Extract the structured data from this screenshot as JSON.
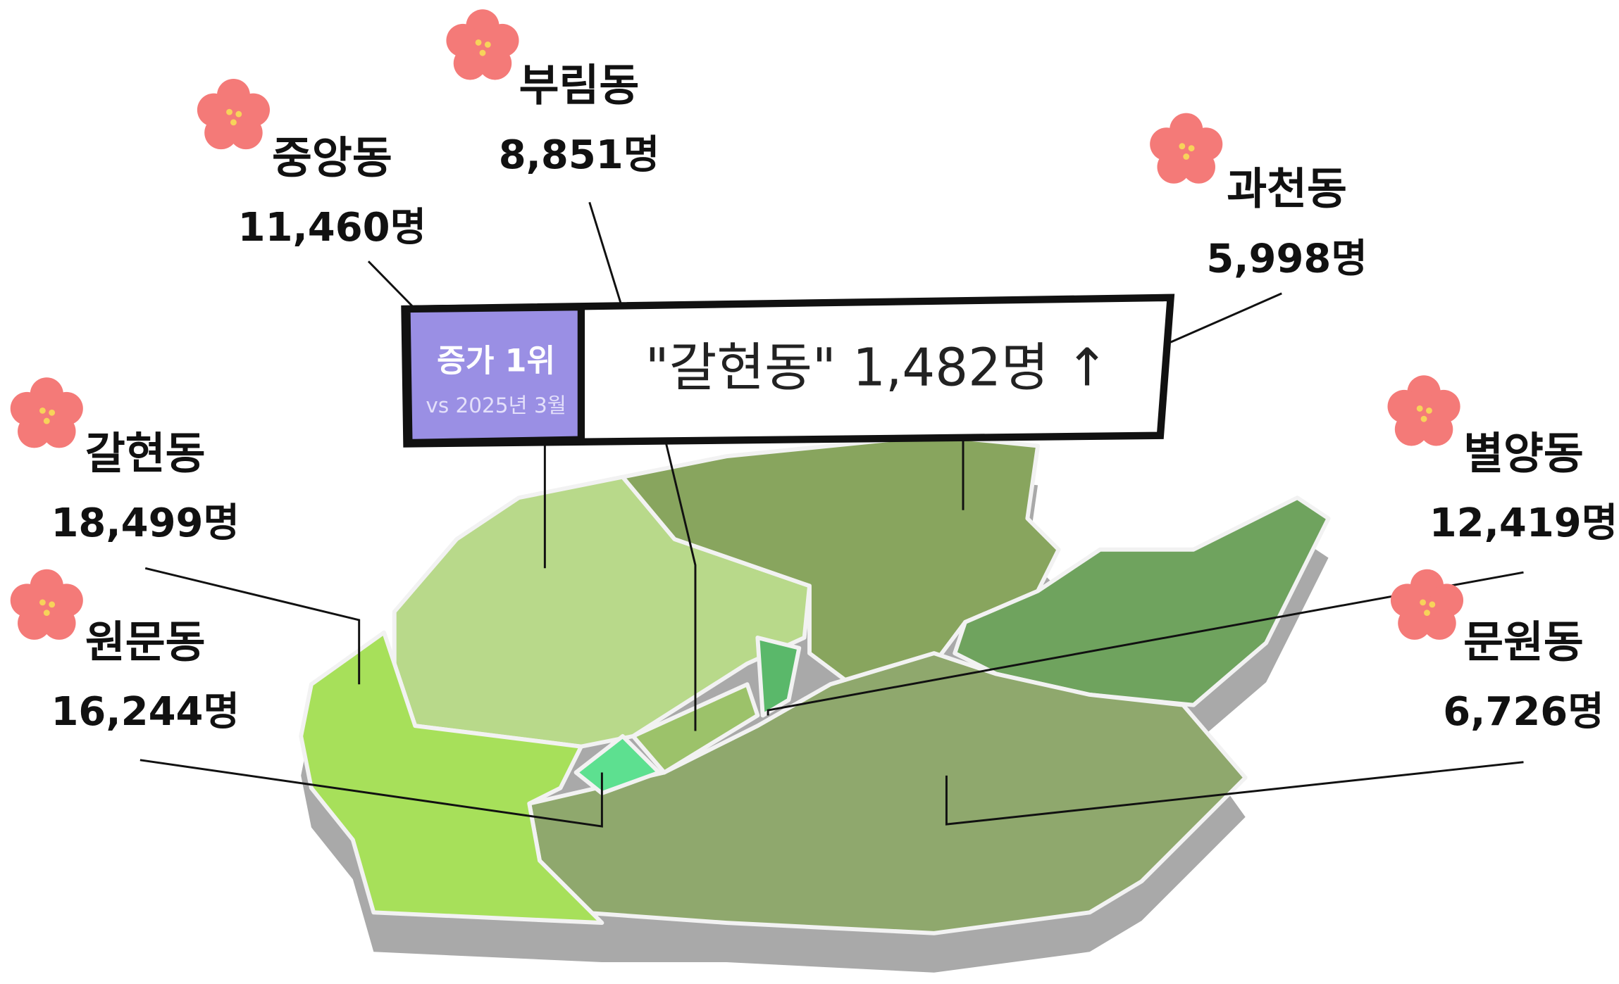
{
  "callout": {
    "badge": "증가 1위",
    "badge_sub": "vs 2025년 3월",
    "text": "\"갈현동\" 1,482명 ↑"
  },
  "districts": [
    {
      "name": "중앙동",
      "population": "11,460명"
    },
    {
      "name": "부림동",
      "population": "8,851명"
    },
    {
      "name": "과천동",
      "population": "5,998명"
    },
    {
      "name": "갈현동",
      "population": "18,499명"
    },
    {
      "name": "원문동",
      "population": "16,244명"
    },
    {
      "name": "별양동",
      "population": "12,419명"
    },
    {
      "name": "문원동",
      "population": "6,726명"
    }
  ]
}
